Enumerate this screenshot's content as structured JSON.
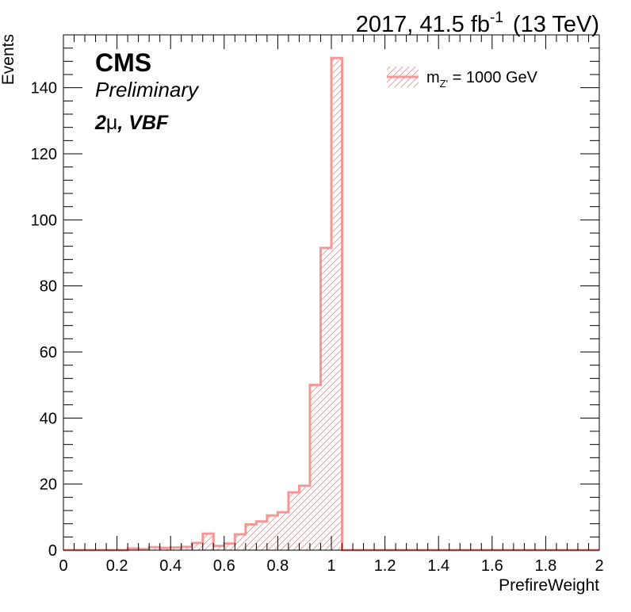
{
  "header": {
    "lumi_prefix": "2017, 41.5 fb",
    "lumi_exp": "-1",
    "energy": "(13 TeV)"
  },
  "labels": {
    "experiment": "CMS",
    "status": "Preliminary",
    "channel_num": "2",
    "channel_mu": "μ",
    "channel_rest": ", VBF"
  },
  "chart_data": {
    "type": "histogram",
    "xlabel": "PrefireWeight",
    "ylabel": "Events",
    "xlim": [
      0,
      2
    ],
    "ylim": [
      0,
      156
    ],
    "x_ticks": [
      0,
      0.2,
      0.4,
      0.6,
      0.8,
      1,
      1.2,
      1.4,
      1.6,
      1.8,
      2
    ],
    "x_tick_labels": [
      "0",
      "0.2",
      "0.4",
      "0.6",
      "0.8",
      "1",
      "1.2",
      "1.4",
      "1.6",
      "1.8",
      "2"
    ],
    "y_ticks": [
      0,
      20,
      40,
      60,
      80,
      100,
      120,
      140
    ],
    "y_tick_labels": [
      "0",
      "20",
      "40",
      "60",
      "80",
      "100",
      "120",
      "140"
    ],
    "bin_width": 0.04,
    "series": [
      {
        "name": "m_{Z'} = 1000 GeV",
        "legend_main": "m",
        "legend_sub": "Z'",
        "legend_rest": " = 1000 GeV",
        "color": "#f79696",
        "bin_edges": [
          0,
          0.04,
          0.08,
          0.12,
          0.16,
          0.2,
          0.24,
          0.28,
          0.32,
          0.36,
          0.4,
          0.44,
          0.48,
          0.52,
          0.56,
          0.6,
          0.64,
          0.68,
          0.72,
          0.76,
          0.8,
          0.84,
          0.88,
          0.92,
          0.96,
          1.0,
          1.04,
          1.08,
          1.12,
          1.16,
          1.2,
          1.24,
          1.28,
          1.32,
          1.36,
          1.4,
          1.44,
          1.48,
          1.52,
          1.56,
          1.6,
          1.64,
          1.68,
          1.72,
          1.76,
          1.8,
          1.84,
          1.88,
          1.92,
          1.96,
          2.0
        ],
        "values": [
          0,
          0,
          0,
          0,
          0,
          0,
          0.5,
          0.3,
          0.9,
          0.7,
          0.8,
          1.0,
          2.2,
          5.0,
          1.3,
          2.0,
          4.8,
          7.8,
          8.7,
          10.5,
          11.5,
          17.5,
          19.5,
          50.0,
          91.5,
          149.0,
          0,
          0,
          0,
          0,
          0,
          0,
          0,
          0,
          0,
          0,
          0,
          0,
          0,
          0,
          0,
          0,
          0,
          0,
          0,
          0,
          0,
          0,
          0,
          0
        ]
      }
    ]
  }
}
